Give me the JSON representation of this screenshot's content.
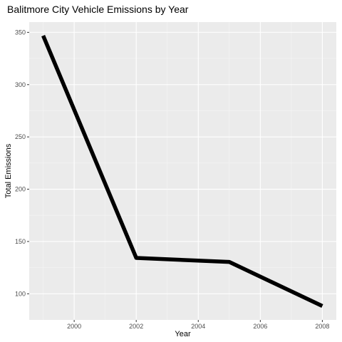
{
  "chart_data": {
    "type": "line",
    "title": "Balitmore City Vehicle Emissions by Year",
    "xlabel": "Year",
    "ylabel": "Total Emissions",
    "x": [
      1999,
      2002,
      2005,
      2008
    ],
    "series": [
      {
        "values": [
          346.82,
          134.31,
          130.43,
          88.28
        ]
      }
    ],
    "xlim": [
      1998.55,
      2008.45
    ],
    "ylim": [
      75.0,
      359.8
    ],
    "x_major_ticks": [
      2000,
      2002,
      2004,
      2006,
      2008
    ],
    "x_tick_labels": [
      "2000",
      "2002",
      "2004",
      "2006",
      "2008"
    ],
    "y_major_ticks": [
      100,
      150,
      200,
      250,
      300,
      350
    ],
    "y_tick_labels": [
      "100",
      "150",
      "200",
      "250",
      "300",
      "350"
    ],
    "x_minor_ticks": [
      1999,
      2001,
      2003,
      2005,
      2007
    ],
    "y_minor_ticks": [
      125,
      175,
      225,
      275,
      325
    ],
    "grid": true,
    "legend": "none",
    "colors": {
      "panel_background": "#ebebeb",
      "grid_major": "#ffffff",
      "grid_minor": "#f5f5f5",
      "line": "#000000",
      "tick_mark": "#333333",
      "tick_label": "#4d4d4d"
    }
  }
}
